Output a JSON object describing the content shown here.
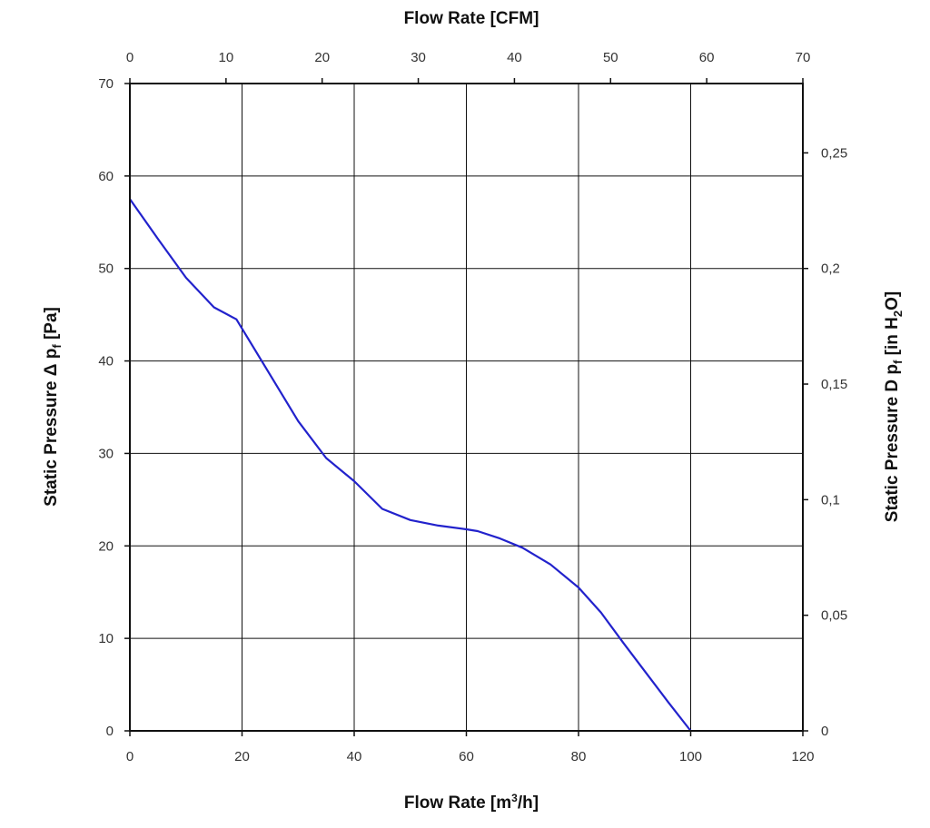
{
  "chart_data": {
    "type": "line",
    "x_axis_bottom": {
      "label": "Flow Rate [m³/h]",
      "label_parts": [
        "Flow Rate [m",
        "3",
        "/h]"
      ],
      "range": [
        0,
        120
      ],
      "ticks": [
        "0",
        "20",
        "40",
        "60",
        "80",
        "100",
        "120"
      ]
    },
    "x_axis_top": {
      "label": "Flow Rate [CFM]",
      "range": [
        0,
        70
      ],
      "ticks": [
        "0",
        "10",
        "20",
        "30",
        "40",
        "50",
        "60",
        "70"
      ]
    },
    "y_axis_left": {
      "label": "Static Pressure Δ pf [Pa]",
      "label_parts": [
        "Static Pressure Δ p",
        "f",
        " [Pa]"
      ],
      "range": [
        0,
        70
      ],
      "ticks": [
        "0",
        "10",
        "20",
        "30",
        "40",
        "50",
        "60",
        "70"
      ]
    },
    "y_axis_right": {
      "label": "Static Pressure D pf [in H2O]",
      "label_parts": [
        "Static Pressure D p",
        "f",
        " [in H",
        "2",
        "O]"
      ],
      "range": [
        0,
        0.28
      ],
      "ticks": [
        "0",
        "0,05",
        "0,1",
        "0,15",
        "0,2",
        "0,25"
      ],
      "tick_values": [
        0,
        0.05,
        0.1,
        0.15,
        0.2,
        0.25
      ]
    },
    "grid": true,
    "series": [
      {
        "color": "#2222cc",
        "x": [
          0,
          5,
          10,
          15,
          19,
          20,
          25,
          30,
          35,
          40,
          45,
          50,
          55,
          60,
          62,
          66,
          70,
          75,
          80,
          84,
          88,
          92,
          96,
          100
        ],
        "y": [
          57.5,
          53.2,
          49.0,
          45.8,
          44.5,
          43.5,
          38.5,
          33.5,
          29.5,
          27.0,
          24.0,
          22.8,
          22.2,
          21.8,
          21.6,
          20.8,
          19.8,
          18.0,
          15.5,
          12.8,
          9.5,
          6.3,
          3.1,
          0
        ]
      }
    ]
  }
}
